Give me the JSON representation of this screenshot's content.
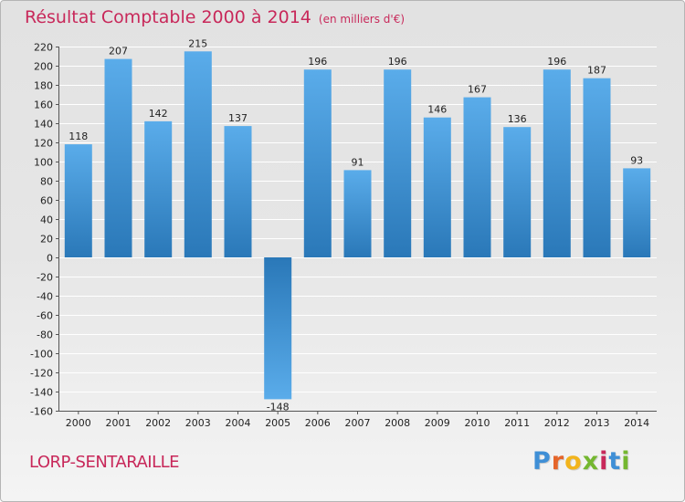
{
  "title": "Résultat Comptable 2000 à 2014",
  "subtitle": "(en milliers d'€)",
  "commune": "LORP-SENTARAILLE",
  "logo": {
    "letters": [
      "P",
      "r",
      "o",
      "x",
      "i",
      "t",
      "i"
    ],
    "colors": [
      "#3f8fd6",
      "#e5652a",
      "#f2b41c",
      "#74b730",
      "#c8285a",
      "#3f8fd6",
      "#74b730"
    ]
  },
  "colors": {
    "title": "#c8285a",
    "bar_light": "#5aacea",
    "bar_dark": "#2a78b8",
    "axis": "#555555",
    "grid": "#ffffff"
  },
  "chart_data": {
    "type": "bar",
    "categories": [
      "2000",
      "2001",
      "2002",
      "2003",
      "2004",
      "2005",
      "2006",
      "2007",
      "2008",
      "2009",
      "2010",
      "2011",
      "2012",
      "2013",
      "2014"
    ],
    "values": [
      118,
      207,
      142,
      215,
      137,
      -148,
      196,
      91,
      196,
      146,
      167,
      136,
      196,
      187,
      93
    ],
    "ylim": [
      -160,
      220
    ],
    "yticks": [
      220,
      200,
      180,
      160,
      140,
      120,
      100,
      80,
      60,
      40,
      20,
      0,
      -20,
      -40,
      -60,
      -80,
      -100,
      -120,
      -140,
      -160
    ],
    "grid": true,
    "legend": "none"
  }
}
